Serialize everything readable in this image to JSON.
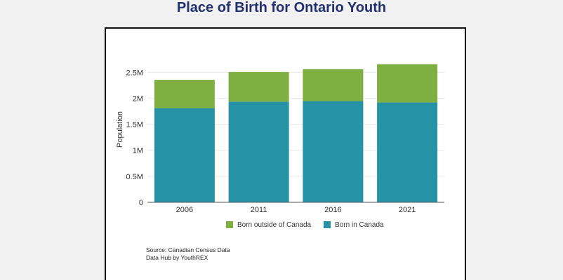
{
  "title": "Place of Birth for Ontario Youth",
  "colors": {
    "outside": "#7faf41",
    "canada": "#2592a5",
    "title": "#23306e"
  },
  "chart_data": {
    "type": "bar",
    "stacked": true,
    "categories": [
      "2006",
      "2011",
      "2016",
      "2021"
    ],
    "series": [
      {
        "name": "Born in Canada",
        "values": [
          1810000,
          1935000,
          1945000,
          1920000
        ]
      },
      {
        "name": "Born outside of Canada",
        "values": [
          545000,
          570000,
          615000,
          735000
        ]
      }
    ],
    "ylabel": "Population",
    "ylim": [
      0,
      2800000
    ],
    "yticks": [
      {
        "value": 0,
        "label": "0"
      },
      {
        "value": 500000,
        "label": "0.5M"
      },
      {
        "value": 1000000,
        "label": "1M"
      },
      {
        "value": 1500000,
        "label": "1.5M"
      },
      {
        "value": 2000000,
        "label": "2M"
      },
      {
        "value": 2500000,
        "label": "2.5M"
      }
    ],
    "grid": true,
    "legend_position": "bottom"
  },
  "legend": [
    {
      "label": "Born outside of Canada",
      "color": "#7faf41"
    },
    {
      "label": "Born in Canada",
      "color": "#2592a5"
    }
  ],
  "source": {
    "line1": "Source: Canadian Census Data",
    "line2": "Data Hub by YouthREX"
  }
}
